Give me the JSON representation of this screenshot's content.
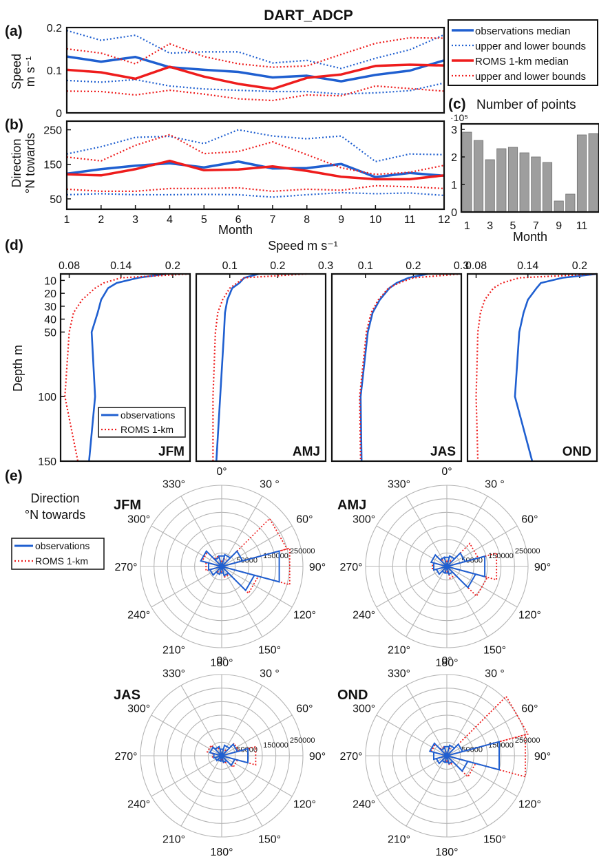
{
  "figure": {
    "title": "DART_ADCP",
    "panel_labels": {
      "a": "(a)",
      "b": "(b)",
      "c": "(c)",
      "d": "(d)",
      "e": "(e)"
    }
  },
  "colors": {
    "observations": "#1f5fd0",
    "roms": "#ee1c1c",
    "bars": "#9e9e9e",
    "grid": "#b5b5b5"
  },
  "legend_top": [
    {
      "label": "observations median",
      "style": "obs-solid"
    },
    {
      "label": "upper and lower bounds",
      "style": "obs-dotted"
    },
    {
      "label": "ROMS 1-km median",
      "style": "roms-solid"
    },
    {
      "label": "upper and lower bounds",
      "style": "roms-dotted"
    }
  ],
  "legend_small": [
    {
      "label": "observations",
      "style": "obs-solid"
    },
    {
      "label": "ROMS 1-km",
      "style": "roms-dotted"
    }
  ],
  "chart_data": [
    {
      "id": "a",
      "type": "line",
      "xlabel": "",
      "ylabel": "Speed m s⁻¹",
      "ylabel_lines": [
        "Speed",
        "m s⁻¹"
      ],
      "x": [
        1,
        2,
        3,
        4,
        5,
        6,
        7,
        8,
        9,
        10,
        11,
        12
      ],
      "xlim": [
        1,
        12
      ],
      "ylim": [
        0,
        0.2
      ],
      "yticks": [
        0,
        0.1,
        0.2
      ],
      "ytick_labels": [
        "0",
        "0.1",
        "0.2"
      ],
      "series": [
        {
          "name": "observations median",
          "values": [
            0.132,
            0.12,
            0.131,
            0.107,
            0.101,
            0.096,
            0.083,
            0.087,
            0.074,
            0.089,
            0.099,
            0.123
          ]
        },
        {
          "name": "upper and lower bounds",
          "bound_of": "observations",
          "values": [
            0.193,
            0.17,
            0.182,
            0.14,
            0.143,
            0.143,
            0.117,
            0.123,
            0.104,
            0.128,
            0.148,
            0.183
          ]
        },
        {
          "name": "upper and lower bounds",
          "bound_of": "observations",
          "values": [
            0.076,
            0.072,
            0.078,
            0.063,
            0.056,
            0.053,
            0.05,
            0.05,
            0.044,
            0.047,
            0.052,
            0.07
          ]
        },
        {
          "name": "ROMS 1-km median",
          "values": [
            0.101,
            0.095,
            0.08,
            0.108,
            0.085,
            0.068,
            0.056,
            0.082,
            0.09,
            0.11,
            0.113,
            0.111
          ]
        },
        {
          "name": "upper and lower bounds",
          "bound_of": "roms",
          "values": [
            0.15,
            0.14,
            0.115,
            0.162,
            0.132,
            0.115,
            0.107,
            0.11,
            0.137,
            0.163,
            0.176,
            0.175
          ]
        },
        {
          "name": "upper and lower bounds",
          "bound_of": "roms",
          "values": [
            0.051,
            0.05,
            0.042,
            0.053,
            0.044,
            0.033,
            0.029,
            0.042,
            0.04,
            0.063,
            0.057,
            0.051
          ]
        }
      ]
    },
    {
      "id": "b",
      "type": "line",
      "xlabel": "Month",
      "ylabel": "Direction °N towards",
      "ylabel_lines": [
        "Direction",
        "°N towards"
      ],
      "x": [
        1,
        2,
        3,
        4,
        5,
        6,
        7,
        8,
        9,
        10,
        11,
        12
      ],
      "xlim": [
        1,
        12
      ],
      "ylim": [
        20,
        275
      ],
      "yticks": [
        50,
        150,
        250
      ],
      "ytick_labels": [
        "50",
        "150",
        "250"
      ],
      "xticks": [
        1,
        2,
        3,
        4,
        5,
        6,
        7,
        8,
        9,
        10,
        11,
        12
      ],
      "xtick_labels": [
        "1",
        "2",
        "3",
        "4",
        "5",
        "6",
        "7",
        "8",
        "9",
        "10",
        "11",
        "12"
      ],
      "series": [
        {
          "name": "observations median",
          "values": [
            123,
            136,
            146,
            153,
            141,
            158,
            138,
            139,
            151,
            113,
            125,
            117
          ]
        },
        {
          "name": "upper and lower bounds",
          "bound_of": "observations",
          "values": [
            180,
            201,
            228,
            231,
            210,
            250,
            232,
            224,
            232,
            158,
            180,
            178
          ]
        },
        {
          "name": "upper and lower bounds",
          "bound_of": "observations",
          "values": [
            62,
            65,
            62,
            62,
            63,
            62,
            55,
            62,
            68,
            65,
            67,
            60
          ]
        },
        {
          "name": "ROMS 1-km median",
          "values": [
            121,
            118,
            136,
            160,
            133,
            135,
            144,
            131,
            114,
            107,
            107,
            118
          ]
        },
        {
          "name": "upper and lower bounds",
          "bound_of": "roms",
          "values": [
            171,
            160,
            205,
            236,
            181,
            187,
            215,
            178,
            140,
            121,
            127,
            147
          ]
        },
        {
          "name": "upper and lower bounds",
          "bound_of": "roms",
          "values": [
            78,
            72,
            72,
            80,
            80,
            82,
            72,
            78,
            75,
            88,
            85,
            80
          ]
        }
      ]
    },
    {
      "id": "c",
      "type": "bar",
      "title": "Number of points",
      "xlabel": "Month",
      "y_multiplier": "·10⁵",
      "categories": [
        "1",
        "2",
        "3",
        "4",
        "5",
        "6",
        "7",
        "8",
        "9",
        "10",
        "11",
        "12"
      ],
      "values": [
        2.9,
        2.6,
        1.9,
        2.3,
        2.35,
        2.15,
        2.0,
        1.8,
        0.4,
        0.65,
        2.8,
        2.85
      ],
      "ylim": [
        0,
        3.2
      ],
      "yticks": [
        0,
        1,
        2,
        3
      ],
      "ytick_labels": [
        "0",
        "1",
        "2",
        "3"
      ],
      "xticks": [
        1,
        3,
        5,
        7,
        9,
        11
      ],
      "xtick_labels": [
        "1",
        "3",
        "5",
        "7",
        "9",
        "11"
      ]
    },
    {
      "id": "d",
      "type": "line",
      "title": "Speed m s⁻¹",
      "ylabel": "Depth m",
      "ylim": [
        5,
        150
      ],
      "y_inverted": true,
      "yticks": [
        10,
        20,
        30,
        40,
        50,
        100,
        150
      ],
      "ytick_labels": [
        "10",
        "20",
        "30",
        "40",
        "50",
        "100",
        "150"
      ],
      "subplots": [
        {
          "season": "JFM",
          "xlim": [
            0.07,
            0.22
          ],
          "xticks": [
            0.08,
            0.14,
            0.2
          ],
          "xtick_labels": [
            "0.08",
            "0.14",
            "0.2"
          ],
          "series": [
            {
              "name": "observations",
              "depth": [
                5,
                8,
                12,
                16,
                25,
                35,
                50,
                100,
                150
              ],
              "speed": [
                0.192,
                0.16,
                0.135,
                0.125,
                0.117,
                0.113,
                0.106,
                0.11,
                0.103
              ]
            },
            {
              "name": "ROMS 1-km",
              "depth": [
                5,
                8,
                12,
                16,
                25,
                35,
                50,
                100,
                150
              ],
              "speed": [
                0.22,
                0.14,
                0.12,
                0.11,
                0.095,
                0.085,
                0.08,
                0.075,
                0.09
              ]
            }
          ]
        },
        {
          "season": "AMJ",
          "xlim": [
            0.03,
            0.3
          ],
          "xticks": [
            0.1,
            0.2,
            0.3
          ],
          "xtick_labels": [
            "0.1",
            "0.2",
            "0.3"
          ],
          "series": [
            {
              "name": "observations",
              "depth": [
                5,
                8,
                12,
                16,
                25,
                35,
                50,
                100,
                150
              ],
              "speed": [
                0.16,
                0.13,
                0.12,
                0.105,
                0.095,
                0.09,
                0.088,
                0.08,
                0.072
              ]
            },
            {
              "name": "ROMS 1-km",
              "depth": [
                5,
                8,
                12,
                16,
                25,
                35,
                50,
                100,
                150
              ],
              "speed": [
                0.26,
                0.13,
                0.115,
                0.1,
                0.085,
                0.075,
                0.07,
                0.065,
                0.065
              ]
            }
          ]
        },
        {
          "season": "JAS",
          "xlim": [
            0.03,
            0.3
          ],
          "xticks": [
            0.1,
            0.2,
            0.3
          ],
          "xtick_labels": [
            "0.1",
            "0.2",
            "0.3"
          ],
          "series": [
            {
              "name": "observations",
              "depth": [
                5,
                8,
                12,
                16,
                25,
                35,
                50,
                100,
                150
              ],
              "speed": [
                0.23,
                0.19,
                0.165,
                0.15,
                0.13,
                0.115,
                0.105,
                0.09,
                0.092
              ]
            },
            {
              "name": "ROMS 1-km",
              "depth": [
                5,
                8,
                12,
                16,
                25,
                35,
                50,
                100,
                150
              ],
              "speed": [
                0.3,
                0.2,
                0.17,
                0.148,
                0.127,
                0.112,
                0.102,
                0.088,
                0.09
              ]
            }
          ]
        },
        {
          "season": "OND",
          "xlim": [
            0.07,
            0.22
          ],
          "xticks": [
            0.08,
            0.14,
            0.2
          ],
          "xtick_labels": [
            "0.08",
            "0.14",
            "0.2"
          ],
          "series": [
            {
              "name": "observations",
              "depth": [
                5,
                8,
                12,
                16,
                25,
                35,
                50,
                100,
                150
              ],
              "speed": [
                0.22,
                0.18,
                0.155,
                0.15,
                0.14,
                0.135,
                0.13,
                0.125,
                0.145
              ]
            },
            {
              "name": "ROMS 1-km",
              "depth": [
                5,
                8,
                12,
                16,
                25,
                35,
                50,
                100,
                150
              ],
              "speed": [
                0.22,
                0.13,
                0.11,
                0.1,
                0.09,
                0.085,
                0.082,
                0.08,
                0.082
              ]
            }
          ]
        }
      ]
    },
    {
      "id": "e",
      "type": "polar",
      "title_lines": [
        "Direction",
        "°N towards"
      ],
      "angle_labels": [
        "0°",
        "30 °",
        "60°",
        "90°",
        "120°",
        "150°",
        "180°",
        "210°",
        "240°",
        "270°",
        "300°",
        "330°"
      ],
      "radial_ticks": [
        50000,
        150000,
        250000
      ],
      "radial_tick_labels": [
        "50000",
        "150000",
        "250000"
      ],
      "rmax": 300000,
      "bin_directions_deg": [
        0,
        30,
        60,
        90,
        120,
        150,
        180,
        210,
        240,
        270,
        300,
        330
      ],
      "subplots": [
        {
          "season": "JFM",
          "observations": [
            40000,
            45000,
            80000,
            220000,
            125000,
            35000,
            25000,
            30000,
            45000,
            50000,
            80000,
            35000
          ],
          "roms": [
            20000,
            30000,
            250000,
            260000,
            140000,
            40000,
            20000,
            25000,
            45000,
            60000,
            75000,
            40000
          ]
        },
        {
          "season": "AMJ",
          "observations": [
            35000,
            40000,
            70000,
            145000,
            110000,
            30000,
            25000,
            25000,
            40000,
            50000,
            60000,
            35000
          ],
          "roms": [
            20000,
            25000,
            120000,
            190000,
            155000,
            45000,
            20000,
            25000,
            40000,
            55000,
            60000,
            30000
          ]
        },
        {
          "season": "JAS",
          "observations": [
            25000,
            40000,
            60000,
            100000,
            50000,
            25000,
            20000,
            20000,
            25000,
            30000,
            45000,
            35000
          ],
          "roms": [
            15000,
            25000,
            65000,
            130000,
            60000,
            30000,
            15000,
            20000,
            25000,
            35000,
            55000,
            30000
          ]
        },
        {
          "season": "OND",
          "observations": [
            35000,
            40000,
            60000,
            200000,
            80000,
            30000,
            25000,
            25000,
            40000,
            50000,
            65000,
            30000
          ],
          "roms": [
            15000,
            30000,
            310000,
            300000,
            110000,
            35000,
            20000,
            25000,
            40000,
            50000,
            60000,
            35000
          ]
        }
      ]
    }
  ]
}
